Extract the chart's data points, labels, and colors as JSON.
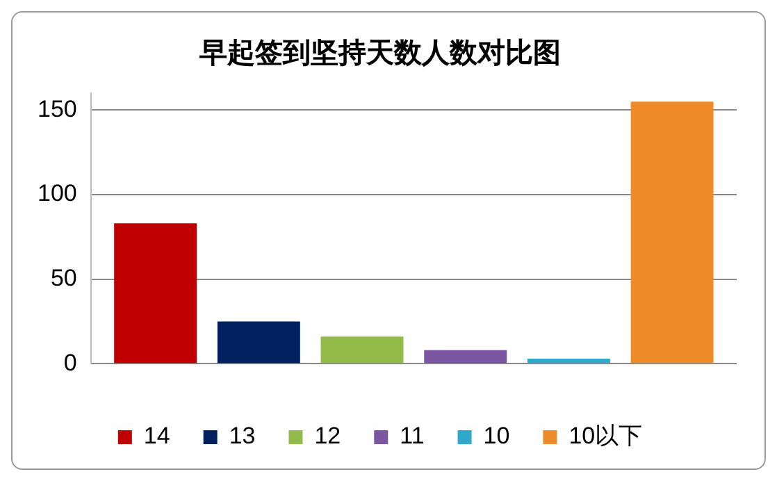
{
  "chart_data": {
    "type": "bar",
    "title": "早起签到坚持天数人数对比图",
    "categories": [
      null
    ],
    "series": [
      {
        "name": "14",
        "color": "#c00000",
        "values": [
          83
        ]
      },
      {
        "name": "13",
        "color": "#002060",
        "values": [
          25
        ]
      },
      {
        "name": "12",
        "color": "#92bb4a",
        "values": [
          16
        ]
      },
      {
        "name": "11",
        "color": "#7a57a0",
        "values": [
          8
        ]
      },
      {
        "name": "10",
        "color": "#2fa9c9",
        "values": [
          3
        ]
      },
      {
        "name": "10以下",
        "color": "#ef8a28",
        "values": [
          155
        ]
      }
    ],
    "ylim": [
      0,
      160
    ],
    "yticks": [
      0,
      50,
      100,
      150
    ],
    "grid": "y",
    "legend": "bottom"
  }
}
